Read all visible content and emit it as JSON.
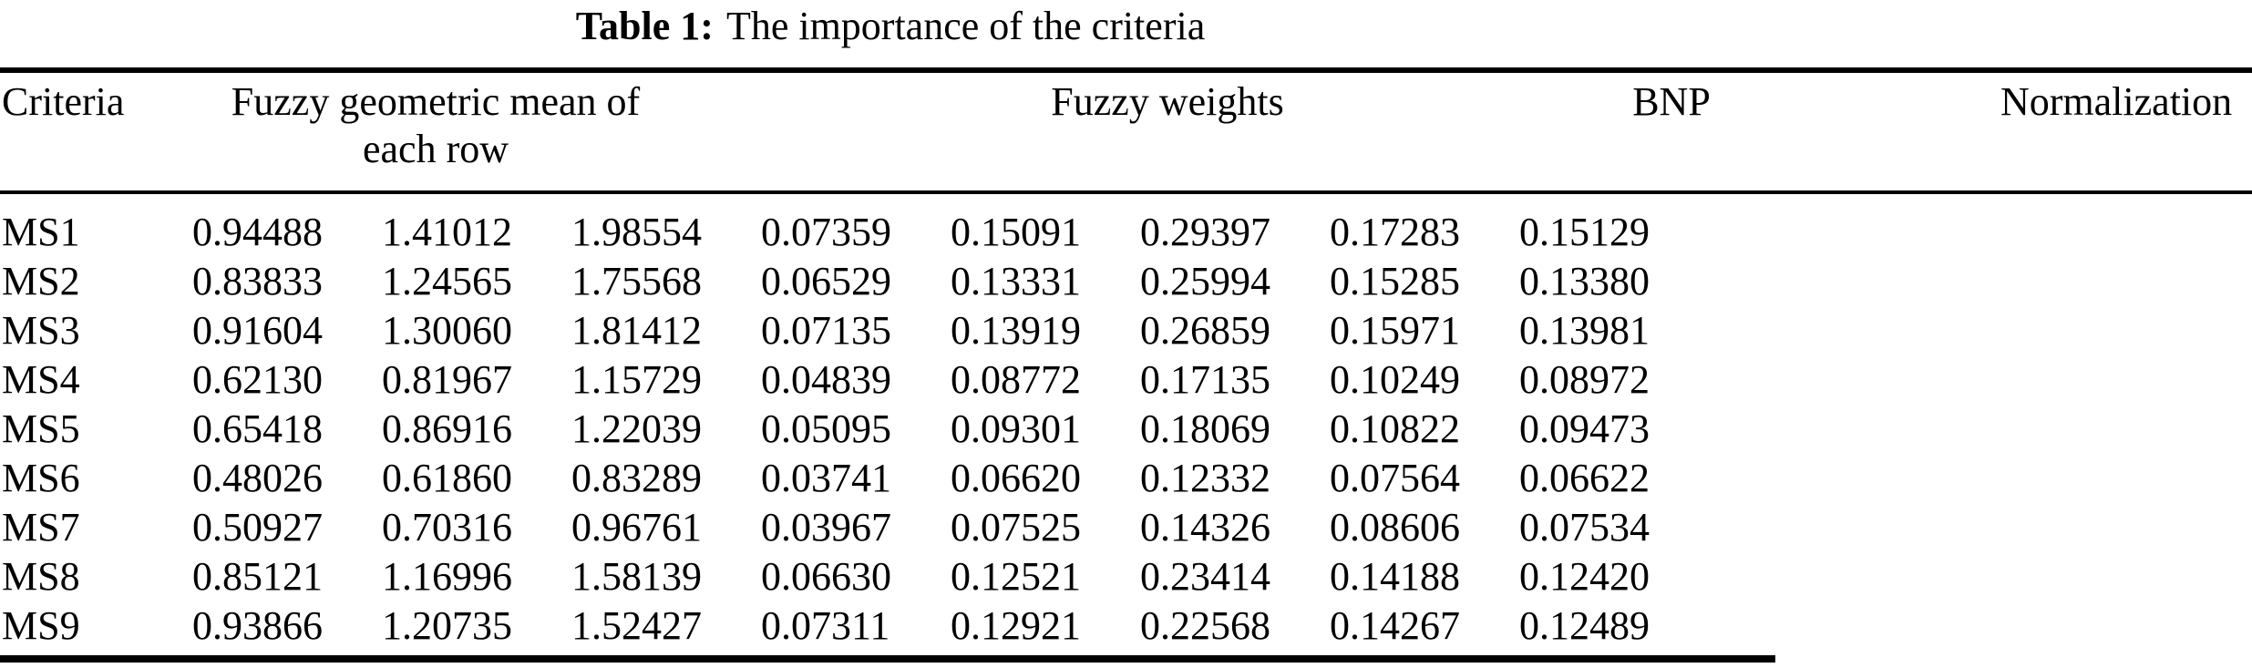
{
  "title": {
    "label": "Table 1:",
    "text": "The importance of the criteria"
  },
  "headers": {
    "criteria": "Criteria",
    "fuzzy_geometric_mean_line1": "Fuzzy geometric mean of",
    "fuzzy_geometric_mean_line2": "each row",
    "fuzzy_weights": "Fuzzy weights",
    "bnp": "BNP",
    "normalization": "Normalization"
  },
  "rows": [
    {
      "criteria": "MS1",
      "values": [
        "0.94488",
        "1.41012",
        "1.98554",
        "0.07359",
        "0.15091",
        "0.29397",
        "0.17283",
        "0.15129"
      ]
    },
    {
      "criteria": "MS2",
      "values": [
        "0.83833",
        "1.24565",
        "1.75568",
        "0.06529",
        "0.13331",
        "0.25994",
        "0.15285",
        "0.13380"
      ]
    },
    {
      "criteria": "MS3",
      "values": [
        "0.91604",
        "1.30060",
        "1.81412",
        "0.07135",
        "0.13919",
        "0.26859",
        "0.15971",
        "0.13981"
      ]
    },
    {
      "criteria": "MS4",
      "values": [
        "0.62130",
        "0.81967",
        "1.15729",
        "0.04839",
        "0.08772",
        "0.17135",
        "0.10249",
        "0.08972"
      ]
    },
    {
      "criteria": "MS5",
      "values": [
        "0.65418",
        "0.86916",
        "1.22039",
        "0.05095",
        "0.09301",
        "0.18069",
        "0.10822",
        "0.09473"
      ]
    },
    {
      "criteria": "MS6",
      "values": [
        "0.48026",
        "0.61860",
        "0.83289",
        "0.03741",
        "0.06620",
        "0.12332",
        "0.07564",
        "0.06622"
      ]
    },
    {
      "criteria": "MS7",
      "values": [
        "0.50927",
        "0.70316",
        "0.96761",
        "0.03967",
        "0.07525",
        "0.14326",
        "0.08606",
        "0.07534"
      ]
    },
    {
      "criteria": "MS8",
      "values": [
        "0.85121",
        "1.16996",
        "1.58139",
        "0.06630",
        "0.12521",
        "0.23414",
        "0.14188",
        "0.12420"
      ]
    },
    {
      "criteria": "MS9",
      "values": [
        "0.93866",
        "1.20735",
        "1.52427",
        "0.07311",
        "0.12921",
        "0.22568",
        "0.14267",
        "0.12489"
      ]
    }
  ],
  "colors": {
    "text": "#000000",
    "background": "#ffffff",
    "rule": "#000000"
  }
}
